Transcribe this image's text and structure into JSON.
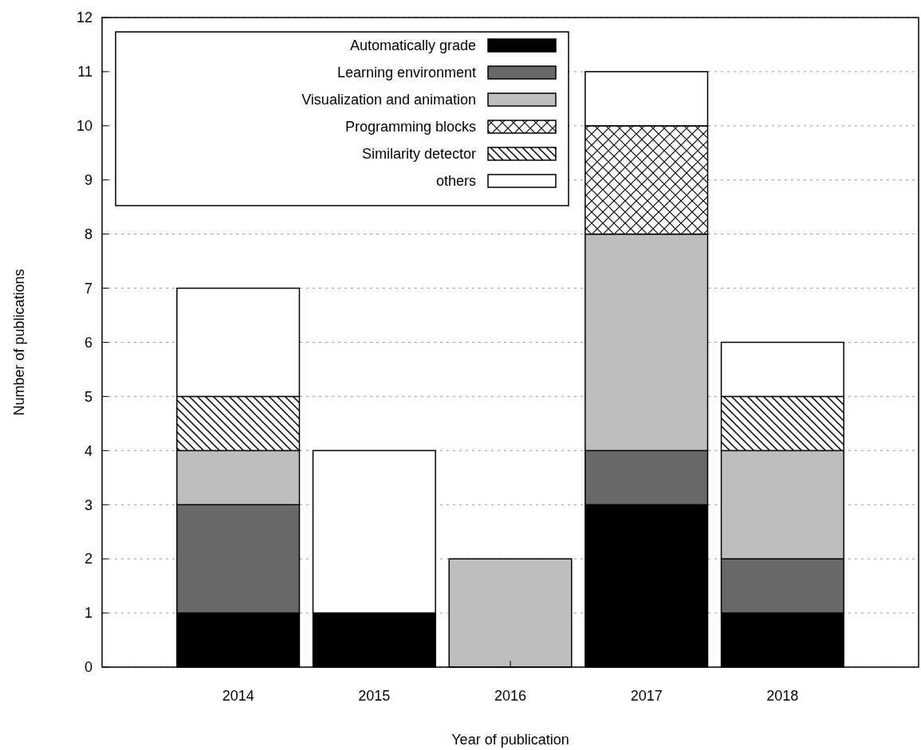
{
  "chart_data": {
    "type": "bar",
    "stacked": true,
    "xlabel": "Year of publication",
    "ylabel": "Number of publications",
    "categories": [
      "2014",
      "2015",
      "2016",
      "2017",
      "2018"
    ],
    "series": [
      {
        "name": "Automatically grade",
        "color": "#000000",
        "values": [
          1,
          1,
          0,
          3,
          1
        ]
      },
      {
        "name": "Learning environment",
        "color": "#696969",
        "values": [
          2,
          0,
          0,
          1,
          1
        ]
      },
      {
        "name": "Visualization and animation",
        "color": "#bebebe",
        "values": [
          1,
          0,
          2,
          4,
          2
        ]
      },
      {
        "name": "Programming blocks",
        "color": "#ffffff",
        "values": [
          0,
          0,
          0,
          2,
          0
        ]
      },
      {
        "name": "Similarity detector",
        "color": "#ffffff",
        "values": [
          1,
          0,
          0,
          0,
          1
        ]
      },
      {
        "name": "others",
        "color": "#ffffff",
        "values": [
          2,
          3,
          0,
          1,
          1
        ]
      }
    ],
    "ylim": [
      0,
      12
    ],
    "yticks": [
      0,
      1,
      2,
      3,
      4,
      5,
      6,
      7,
      8,
      9,
      10,
      11,
      12
    ],
    "grid": "y",
    "legend": "top left"
  }
}
